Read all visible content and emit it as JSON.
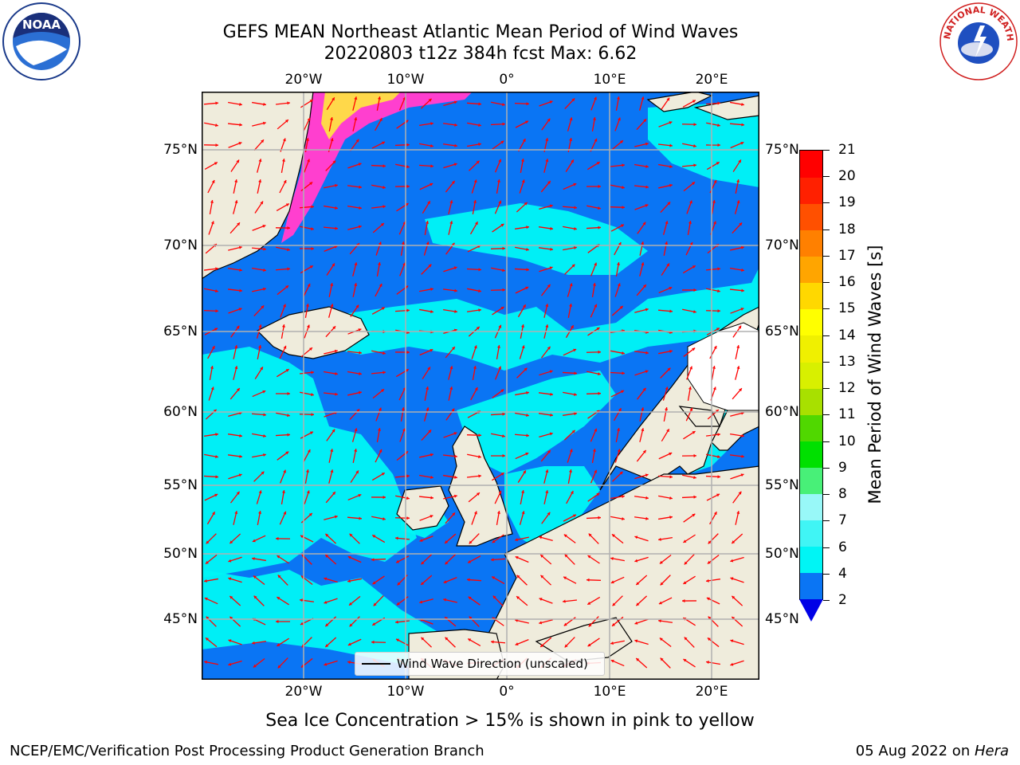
{
  "header": {
    "title_line1": "GEFS MEAN Northeast Atlantic Mean Period of Wind Waves",
    "title_line2": "20220803 t12z 384h fcst   Max: 6.62"
  },
  "logos": {
    "left_logo_text": "NOAA",
    "right_logo_text": "NATIONAL WEATHER SERVICE"
  },
  "map": {
    "lat_labels": [
      "75°N",
      "70°N",
      "65°N",
      "60°N",
      "55°N",
      "50°N",
      "45°N"
    ],
    "lon_labels": [
      "20°W",
      "10°W",
      "0°",
      "10°E",
      "20°E"
    ],
    "legend_label": "Wind Wave Direction (unscaled)",
    "land_color": "#efecdc",
    "ocean_base_color": "#0a75f4",
    "cyan_color": "#00f5f5",
    "arrow_color": "#ff0000",
    "grid_color": "#b0b0b0"
  },
  "colorbar": {
    "title": "Mean Period of Wind Waves [s]",
    "tick_labels": [
      "2",
      "4",
      "6",
      "7",
      "8",
      "9",
      "10",
      "11",
      "12",
      "13",
      "14",
      "15",
      "16",
      "17",
      "18",
      "19",
      "20",
      "21"
    ],
    "colors": [
      "#0a75f4",
      "#00f5f5",
      "#40f5f5",
      "#98f8f8",
      "#48f078",
      "#00e000",
      "#50d800",
      "#a8e000",
      "#d8f000",
      "#f0f000",
      "#ffff00",
      "#ffd800",
      "#ffa500",
      "#ff8000",
      "#ff5000",
      "#ff2000",
      "#ff0000"
    ],
    "under_color": "#0000e6"
  },
  "footer": {
    "note": "Sea Ice Concentration > 15% is shown in pink to yellow",
    "left": "NCEP/EMC/Verification Post Processing Product Generation Branch",
    "right_date": "05 Aug 2022 on ",
    "right_host": "Hera"
  }
}
